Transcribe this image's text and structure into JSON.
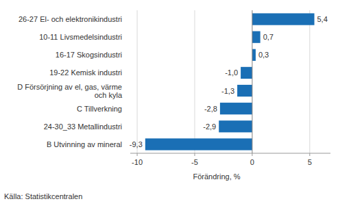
{
  "chart_data": {
    "type": "bar",
    "orientation": "horizontal",
    "categories": [
      "26-27 El- och elektronikindustri",
      "10-11 Livsmedelsindustri",
      "16-17 Skogsindustri",
      "19-22 Kemisk industri",
      "D Försörjning av el, gas, värme och kyla",
      "C Tillverkning",
      "24-30_33 Metallindustri",
      "B Utvinning av mineral"
    ],
    "values": [
      5.4,
      0.7,
      0.3,
      -1.0,
      -1.3,
      -2.8,
      -2.9,
      -9.3
    ],
    "value_labels": [
      "5,4",
      "0,7",
      "0,3",
      "-1,0",
      "-1,3",
      "-2,8",
      "-2,9",
      "-9,3"
    ],
    "data_labels": true,
    "color": "#1a6fb5",
    "x_label": "Förändring, %",
    "xlim": [
      -10.6,
      6.8
    ],
    "xticks": [
      -10,
      -5,
      0,
      5
    ],
    "grid": true,
    "source": "Källa: Statistikcentralen"
  }
}
